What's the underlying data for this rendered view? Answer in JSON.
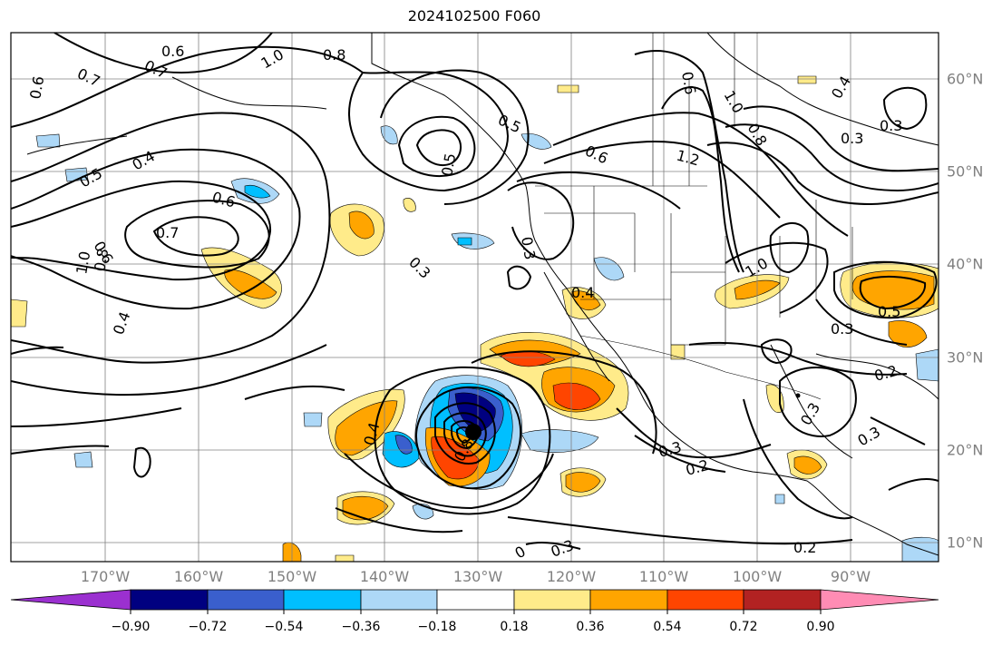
{
  "title": "2024102500 F060",
  "longitude_labels": [
    "170°W",
    "160°W",
    "150°W",
    "140°W",
    "130°W",
    "120°W",
    "110°W",
    "100°W",
    "90°W"
  ],
  "latitude_labels": [
    "60°N",
    "50°N",
    "40°N",
    "30°N",
    "20°N",
    "10°N"
  ],
  "colorbar": {
    "tick_labels": [
      "−0.90",
      "−0.72",
      "−0.54",
      "−0.36",
      "−0.18",
      "0.18",
      "0.36",
      "0.54",
      "0.72",
      "0.90"
    ],
    "colors": [
      "#9b30d0",
      "#000080",
      "#3a5fcd",
      "#00bfff",
      "#add8f7",
      "#ffffff",
      "#ffeb8a",
      "#ffa500",
      "#ff4500",
      "#b22222",
      "#ff8cb4"
    ]
  },
  "contour_labels": [
    "0.6",
    "0.7",
    "0.6",
    "0.8",
    "1.0",
    "0.7",
    "0.6",
    "0.5",
    "0.4",
    "0.5",
    "0.6",
    "0.7",
    "1.0",
    "0.8",
    "0.6",
    "0.4",
    "0.3",
    "0.5",
    "0.6",
    "1.2",
    "1.0",
    "0.8",
    "0.4",
    "0.3",
    "0.3",
    "0.4",
    "0.3",
    "1.0",
    "0.5",
    "0.3",
    "0.2",
    "0.3",
    "0.3",
    "0.2",
    "0.3",
    "0.2",
    "0.4",
    "0.8",
    "0.3",
    "0"
  ]
}
